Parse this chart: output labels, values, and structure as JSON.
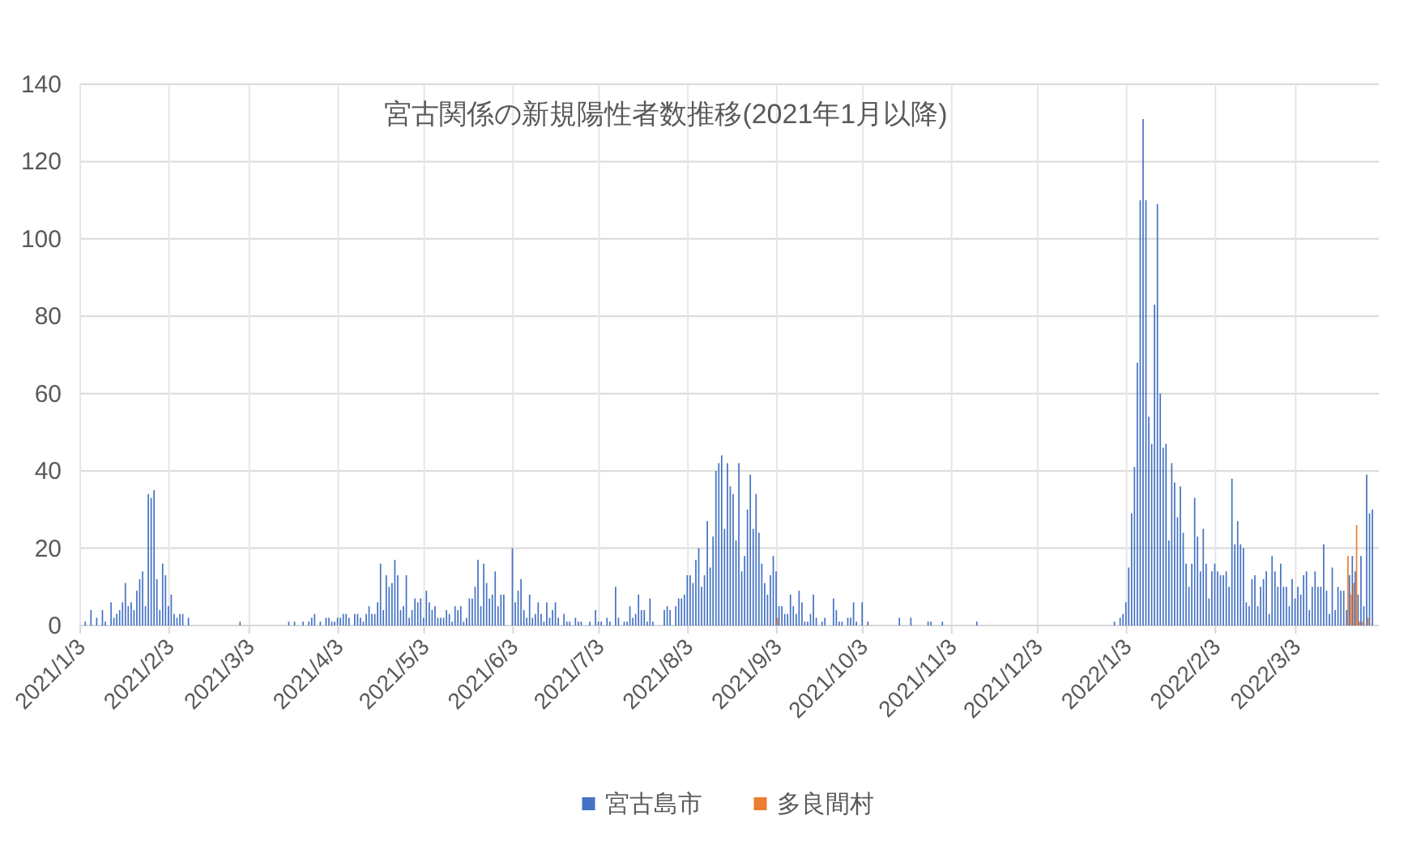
{
  "chart_data": {
    "type": "bar",
    "title": "宮古関係の新規陽性者数推移(2021年1月以降)",
    "xlim": [
      "2021-01-03",
      "2022-04-01"
    ],
    "xticks": [
      {
        "value": "2021-01-03",
        "label": "2021/1/3"
      },
      {
        "value": "2021-02-03",
        "label": "2021/2/3"
      },
      {
        "value": "2021-03-03",
        "label": "2021/3/3"
      },
      {
        "value": "2021-04-03",
        "label": "2021/4/3"
      },
      {
        "value": "2021-05-03",
        "label": "2021/5/3"
      },
      {
        "value": "2021-06-03",
        "label": "2021/6/3"
      },
      {
        "value": "2021-07-03",
        "label": "2021/7/3"
      },
      {
        "value": "2021-08-03",
        "label": "2021/8/3"
      },
      {
        "value": "2021-09-03",
        "label": "2021/9/3"
      },
      {
        "value": "2021-10-03",
        "label": "2021/10/3"
      },
      {
        "value": "2021-11-03",
        "label": "2021/11/3"
      },
      {
        "value": "2021-12-03",
        "label": "2021/12/3"
      },
      {
        "value": "2022-01-03",
        "label": "2022/1/3"
      },
      {
        "value": "2022-02-03",
        "label": "2022/2/3"
      },
      {
        "value": "2022-03-03",
        "label": "2022/3/3"
      }
    ],
    "ylim": [
      0,
      140
    ],
    "yticks": [
      0,
      20,
      40,
      60,
      80,
      100,
      120,
      140
    ],
    "grid": true,
    "legend": "bottom",
    "series": [
      {
        "name": "宮古島市",
        "color": "#4472c4",
        "x": [
          "2021-01-05",
          "2021-01-07",
          "2021-01-09",
          "2021-01-11",
          "2021-01-12",
          "2021-01-14",
          "2021-01-15",
          "2021-01-16",
          "2021-01-17",
          "2021-01-18",
          "2021-01-19",
          "2021-01-20",
          "2021-01-21",
          "2021-01-22",
          "2021-01-23",
          "2021-01-24",
          "2021-01-25",
          "2021-01-26",
          "2021-01-27",
          "2021-01-28",
          "2021-01-29",
          "2021-01-30",
          "2021-01-31",
          "2021-02-01",
          "2021-02-02",
          "2021-02-03",
          "2021-02-04",
          "2021-02-05",
          "2021-02-06",
          "2021-02-07",
          "2021-02-08",
          "2021-02-10",
          "2021-02-28",
          "2021-03-17",
          "2021-03-19",
          "2021-03-22",
          "2021-03-24",
          "2021-03-25",
          "2021-03-26",
          "2021-03-28",
          "2021-03-30",
          "2021-03-31",
          "2021-04-01",
          "2021-04-02",
          "2021-04-03",
          "2021-04-04",
          "2021-04-05",
          "2021-04-06",
          "2021-04-07",
          "2021-04-09",
          "2021-04-10",
          "2021-04-11",
          "2021-04-12",
          "2021-04-13",
          "2021-04-14",
          "2021-04-15",
          "2021-04-16",
          "2021-04-17",
          "2021-04-18",
          "2021-04-19",
          "2021-04-20",
          "2021-04-21",
          "2021-04-22",
          "2021-04-23",
          "2021-04-24",
          "2021-04-25",
          "2021-04-26",
          "2021-04-27",
          "2021-04-28",
          "2021-04-29",
          "2021-04-30",
          "2021-05-01",
          "2021-05-02",
          "2021-05-03",
          "2021-05-04",
          "2021-05-05",
          "2021-05-06",
          "2021-05-07",
          "2021-05-08",
          "2021-05-09",
          "2021-05-10",
          "2021-05-11",
          "2021-05-12",
          "2021-05-13",
          "2021-05-14",
          "2021-05-15",
          "2021-05-16",
          "2021-05-17",
          "2021-05-18",
          "2021-05-19",
          "2021-05-20",
          "2021-05-21",
          "2021-05-22",
          "2021-05-23",
          "2021-05-24",
          "2021-05-25",
          "2021-05-26",
          "2021-05-27",
          "2021-05-28",
          "2021-05-29",
          "2021-05-30",
          "2021-05-31",
          "2021-06-03",
          "2021-06-04",
          "2021-06-05",
          "2021-06-06",
          "2021-06-07",
          "2021-06-08",
          "2021-06-09",
          "2021-06-10",
          "2021-06-11",
          "2021-06-12",
          "2021-06-13",
          "2021-06-14",
          "2021-06-15",
          "2021-06-16",
          "2021-06-17",
          "2021-06-18",
          "2021-06-19",
          "2021-06-21",
          "2021-06-22",
          "2021-06-23",
          "2021-06-25",
          "2021-06-26",
          "2021-06-27",
          "2021-06-30",
          "2021-07-02",
          "2021-07-03",
          "2021-07-04",
          "2021-07-06",
          "2021-07-07",
          "2021-07-09",
          "2021-07-10",
          "2021-07-12",
          "2021-07-13",
          "2021-07-14",
          "2021-07-15",
          "2021-07-16",
          "2021-07-17",
          "2021-07-18",
          "2021-07-19",
          "2021-07-20",
          "2021-07-21",
          "2021-07-22",
          "2021-07-26",
          "2021-07-27",
          "2021-07-28",
          "2021-07-30",
          "2021-07-31",
          "2021-08-01",
          "2021-08-02",
          "2021-08-03",
          "2021-08-04",
          "2021-08-05",
          "2021-08-06",
          "2021-08-07",
          "2021-08-08",
          "2021-08-09",
          "2021-08-10",
          "2021-08-11",
          "2021-08-12",
          "2021-08-13",
          "2021-08-14",
          "2021-08-15",
          "2021-08-16",
          "2021-08-17",
          "2021-08-18",
          "2021-08-19",
          "2021-08-20",
          "2021-08-21",
          "2021-08-22",
          "2021-08-23",
          "2021-08-24",
          "2021-08-25",
          "2021-08-26",
          "2021-08-27",
          "2021-08-28",
          "2021-08-29",
          "2021-08-30",
          "2021-08-31",
          "2021-09-01",
          "2021-09-02",
          "2021-09-03",
          "2021-09-04",
          "2021-09-05",
          "2021-09-06",
          "2021-09-07",
          "2021-09-08",
          "2021-09-09",
          "2021-09-10",
          "2021-09-11",
          "2021-09-12",
          "2021-09-13",
          "2021-09-14",
          "2021-09-15",
          "2021-09-16",
          "2021-09-17",
          "2021-09-19",
          "2021-09-20",
          "2021-09-23",
          "2021-09-24",
          "2021-09-25",
          "2021-09-26",
          "2021-09-28",
          "2021-09-29",
          "2021-09-30",
          "2021-10-01",
          "2021-10-03",
          "2021-10-05",
          "2021-10-16",
          "2021-10-20",
          "2021-10-26",
          "2021-10-27",
          "2021-10-31",
          "2021-11-12",
          "2021-12-30",
          "2022-01-01",
          "2022-01-02",
          "2022-01-03",
          "2022-01-04",
          "2022-01-05",
          "2022-01-06",
          "2022-01-07",
          "2022-01-08",
          "2022-01-09",
          "2022-01-10",
          "2022-01-11",
          "2022-01-12",
          "2022-01-13",
          "2022-01-14",
          "2022-01-15",
          "2022-01-16",
          "2022-01-17",
          "2022-01-18",
          "2022-01-19",
          "2022-01-20",
          "2022-01-21",
          "2022-01-22",
          "2022-01-23",
          "2022-01-24",
          "2022-01-25",
          "2022-01-26",
          "2022-01-27",
          "2022-01-28",
          "2022-01-29",
          "2022-01-30",
          "2022-01-31",
          "2022-02-01",
          "2022-02-02",
          "2022-02-03",
          "2022-02-04",
          "2022-02-05",
          "2022-02-06",
          "2022-02-07",
          "2022-02-08",
          "2022-02-09",
          "2022-02-10",
          "2022-02-11",
          "2022-02-12",
          "2022-02-13",
          "2022-02-14",
          "2022-02-15",
          "2022-02-16",
          "2022-02-17",
          "2022-02-18",
          "2022-02-19",
          "2022-02-20",
          "2022-02-21",
          "2022-02-22",
          "2022-02-23",
          "2022-02-24",
          "2022-02-25",
          "2022-02-26",
          "2022-02-27",
          "2022-02-28",
          "2022-03-01",
          "2022-03-02",
          "2022-03-03",
          "2022-03-04",
          "2022-03-05",
          "2022-03-06",
          "2022-03-07",
          "2022-03-08",
          "2022-03-09",
          "2022-03-10",
          "2022-03-11",
          "2022-03-12",
          "2022-03-13",
          "2022-03-14",
          "2022-03-15",
          "2022-03-16",
          "2022-03-17",
          "2022-03-18",
          "2022-03-19",
          "2022-03-20",
          "2022-03-21",
          "2022-03-22",
          "2022-03-23",
          "2022-03-24",
          "2022-03-25",
          "2022-03-26",
          "2022-03-27",
          "2022-03-28",
          "2022-03-29",
          "2022-03-30"
        ],
        "values": [
          1,
          4,
          2,
          4,
          1,
          6,
          2,
          3,
          4,
          6,
          11,
          5,
          6,
          4,
          9,
          12,
          14,
          5,
          34,
          33,
          35,
          12,
          4,
          16,
          13,
          5,
          8,
          3,
          2,
          3,
          3,
          2,
          1,
          1,
          1,
          1,
          1,
          2,
          3,
          1,
          2,
          2,
          1,
          1,
          2,
          2,
          3,
          3,
          2,
          3,
          3,
          2,
          1,
          3,
          5,
          3,
          3,
          6,
          16,
          4,
          13,
          10,
          11,
          17,
          13,
          4,
          5,
          13,
          2,
          4,
          7,
          6,
          7,
          2,
          9,
          6,
          4,
          5,
          2,
          2,
          2,
          4,
          3,
          1,
          5,
          4,
          5,
          1,
          2,
          7,
          7,
          10,
          17,
          5,
          16,
          11,
          7,
          8,
          14,
          5,
          8,
          8,
          20,
          6,
          9,
          12,
          4,
          2,
          8,
          2,
          3,
          6,
          3,
          1,
          6,
          2,
          4,
          6,
          2,
          3,
          1,
          1,
          2,
          1,
          1,
          1,
          4,
          1,
          1,
          2,
          1,
          10,
          2,
          1,
          1,
          5,
          2,
          3,
          8,
          4,
          4,
          1,
          7,
          1,
          4,
          5,
          4,
          5,
          7,
          7,
          8,
          13,
          13,
          11,
          17,
          20,
          10,
          13,
          27,
          15,
          23,
          40,
          42,
          44,
          25,
          42,
          36,
          34,
          22,
          42,
          14,
          18,
          30,
          39,
          25,
          34,
          24,
          16,
          11,
          8,
          13,
          18,
          14,
          5,
          5,
          3,
          3,
          8,
          5,
          3,
          9,
          6,
          1,
          1,
          3,
          8,
          2,
          1,
          2,
          7,
          4,
          1,
          1,
          2,
          2,
          6,
          1,
          6,
          1,
          2,
          2,
          1,
          1,
          1,
          1,
          1,
          2,
          3,
          6,
          15,
          29,
          41,
          68,
          110,
          131,
          110,
          54,
          47,
          83,
          109,
          60,
          46,
          47,
          22,
          42,
          37,
          28,
          36,
          24,
          16,
          10,
          16,
          33,
          23,
          14,
          25,
          16,
          7,
          14,
          16,
          14,
          13,
          13,
          14,
          10,
          38,
          21,
          27,
          21,
          20,
          6,
          5,
          12,
          13,
          5,
          10,
          12,
          14,
          3,
          18,
          14,
          10,
          16,
          10,
          10,
          5,
          12,
          7,
          10,
          8,
          13,
          14,
          4,
          10,
          14,
          10,
          10,
          21,
          9,
          3,
          15,
          4,
          10,
          9,
          9,
          4,
          13,
          18,
          14,
          8,
          18,
          5,
          39,
          29,
          30
        ]
      },
      {
        "name": "多良間村",
        "color": "#ed7d31",
        "x": [
          "2021-09-03",
          "2022-03-21",
          "2022-03-22",
          "2022-03-23",
          "2022-03-24",
          "2022-03-25",
          "2022-03-26",
          "2022-03-28"
        ],
        "values": [
          2,
          18,
          8,
          11,
          26,
          1,
          1,
          2
        ]
      }
    ]
  }
}
